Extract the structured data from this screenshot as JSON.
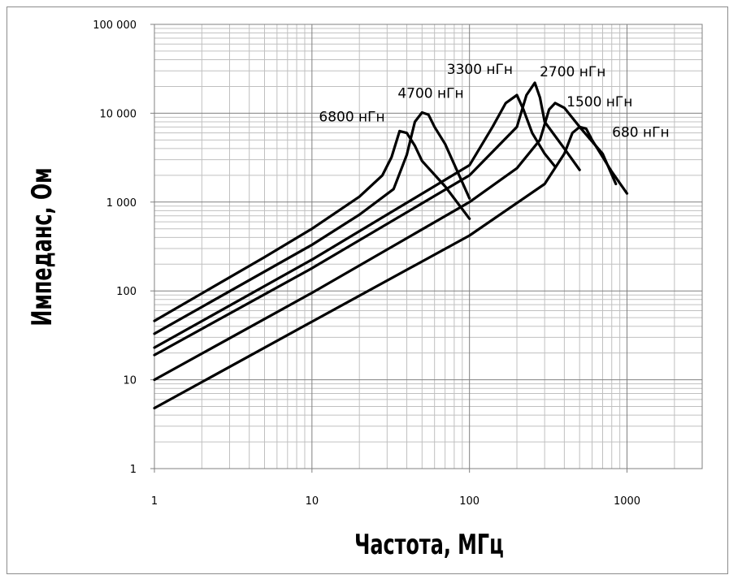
{
  "chart_data": {
    "type": "line",
    "xlabel": "Частота, МГц",
    "ylabel": "Импеданс, Ом",
    "x_scale": "log",
    "y_scale": "log",
    "xlim": [
      1,
      3000
    ],
    "ylim": [
      1,
      100000
    ],
    "grid": true,
    "x_ticks": [
      {
        "value": 1,
        "label": "1"
      },
      {
        "value": 10,
        "label": "10"
      },
      {
        "value": 100,
        "label": "100"
      },
      {
        "value": 1000,
        "label": "1000"
      }
    ],
    "y_ticks": [
      {
        "value": 1,
        "label": "1"
      },
      {
        "value": 10,
        "label": "10"
      },
      {
        "value": 100,
        "label": "100"
      },
      {
        "value": 1000,
        "label": "1 000"
      },
      {
        "value": 10000,
        "label": "10 000"
      },
      {
        "value": 100000,
        "label": "100 000"
      }
    ],
    "series": [
      {
        "name": "6800 нГн",
        "x": [
          1,
          5,
          10,
          20,
          28,
          32,
          36,
          40,
          45,
          50,
          70,
          100
        ],
        "y": [
          46,
          240,
          500,
          1150,
          2000,
          3200,
          6300,
          6000,
          4300,
          2900,
          1500,
          650
        ]
      },
      {
        "name": "4700 нГн",
        "x": [
          1,
          10,
          20,
          33,
          40,
          45,
          50,
          55,
          60,
          70,
          100
        ],
        "y": [
          33,
          330,
          720,
          1400,
          3400,
          8000,
          10200,
          9600,
          7000,
          4500,
          1100
        ]
      },
      {
        "name": "3300 нГн",
        "x": [
          1,
          10,
          100,
          140,
          170,
          200,
          220,
          250,
          300,
          350
        ],
        "y": [
          23,
          225,
          2600,
          7000,
          13000,
          16000,
          11000,
          6000,
          3500,
          2500
        ]
      },
      {
        "name": "2700 нГн",
        "x": [
          1,
          10,
          100,
          200,
          230,
          260,
          280,
          300,
          400,
          500
        ],
        "y": [
          19,
          180,
          2000,
          7000,
          16000,
          22000,
          15000,
          8000,
          4000,
          2300
        ]
      },
      {
        "name": "1500 нГн",
        "x": [
          1,
          10,
          100,
          200,
          280,
          320,
          350,
          400,
          500,
          700,
          850
        ],
        "y": [
          10,
          95,
          1000,
          2400,
          5000,
          11000,
          13000,
          11500,
          7000,
          3500,
          1600
        ]
      },
      {
        "name": "680 нГн",
        "x": [
          1,
          10,
          100,
          300,
          400,
          450,
          500,
          550,
          600,
          800,
          1000
        ],
        "y": [
          4.8,
          45,
          420,
          1600,
          3500,
          6000,
          7000,
          6700,
          5000,
          2200,
          1250
        ]
      }
    ]
  }
}
